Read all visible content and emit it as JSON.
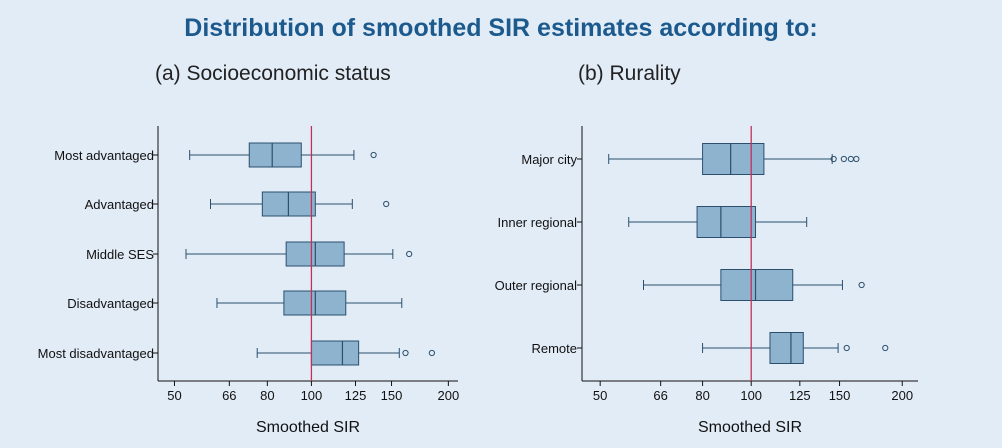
{
  "title": "Distribution of smoothed SIR estimates according to:",
  "colors": {
    "box_fill": "#8eb3cf",
    "box_stroke": "#2b4f6c",
    "reference_line": "#c4305a",
    "title": "#1c5a8e"
  },
  "chart_data": [
    {
      "type": "box",
      "title": "(a) Socioeconomic status",
      "xlabel": "Smoothed SIR",
      "x_scale": "log",
      "xticks": [
        50,
        66,
        80,
        100,
        125,
        150,
        200
      ],
      "xlim": [
        46,
        210
      ],
      "reference_line": 100,
      "grid": false,
      "categories": [
        "Most advantaged",
        "Advantaged",
        "Middle SES",
        "Disadvantaged",
        "Most disadvantaged"
      ],
      "boxes": [
        {
          "whisker_low": 54,
          "q1": 73,
          "median": 82,
          "q3": 95,
          "whisker_high": 124,
          "outliers": [
            137
          ]
        },
        {
          "whisker_low": 60,
          "q1": 78,
          "median": 89,
          "q3": 102,
          "whisker_high": 123,
          "outliers": [
            146
          ]
        },
        {
          "whisker_low": 53,
          "q1": 88,
          "median": 102,
          "q3": 118,
          "whisker_high": 151,
          "outliers": [
            164
          ]
        },
        {
          "whisker_low": 62,
          "q1": 87,
          "median": 102,
          "q3": 119,
          "whisker_high": 158,
          "outliers": []
        },
        {
          "whisker_low": 76,
          "q1": 100,
          "median": 117,
          "q3": 127,
          "whisker_high": 156,
          "outliers": [
            161,
            184
          ]
        }
      ]
    },
    {
      "type": "box",
      "title": "(b) Rurality",
      "xlabel": "Smoothed SIR",
      "x_scale": "log",
      "xticks": [
        50,
        66,
        80,
        100,
        125,
        150,
        200
      ],
      "xlim": [
        46,
        215
      ],
      "reference_line": 100,
      "grid": false,
      "categories": [
        "Major city",
        "Inner regional",
        "Outer regional",
        "Remote"
      ],
      "boxes": [
        {
          "whisker_low": 52,
          "q1": 80,
          "median": 91,
          "q3": 106,
          "whisker_high": 145,
          "outliers": [
            146,
            153,
            158,
            162
          ]
        },
        {
          "whisker_low": 57,
          "q1": 78,
          "median": 87,
          "q3": 102,
          "whisker_high": 129,
          "outliers": []
        },
        {
          "whisker_low": 61,
          "q1": 87,
          "median": 102,
          "q3": 121,
          "whisker_high": 152,
          "outliers": [
            166
          ]
        },
        {
          "whisker_low": 80,
          "q1": 109,
          "median": 120,
          "q3": 127,
          "whisker_high": 149,
          "outliers": [
            155,
            185
          ]
        }
      ]
    }
  ]
}
